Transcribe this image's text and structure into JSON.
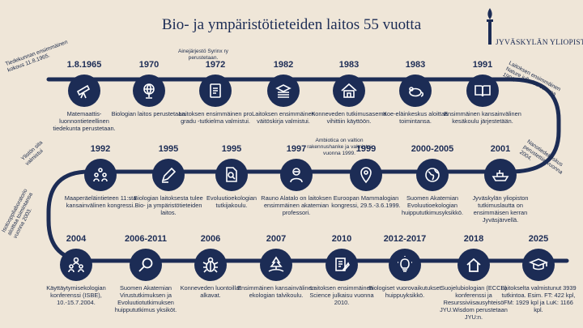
{
  "title": "Bio- ja ympäristötieteiden laitos 55 vuotta",
  "logo": {
    "name": "JYVÄSKYLÄN YLIOPISTO",
    "icon": "torch-icon"
  },
  "side_notes": {
    "n1": "Tiedekunnan ensimmäinen kokous 11.8.1965.",
    "n2": "Laitoksen ensimmäinen Nature julkaisu vuonna 1991.",
    "n3": "Ylistön sita valmistui",
    "n4": "Nanotiedekeskus perustettiin vuonna 2004.",
    "n5": "Isotooppilaboratorio aloittaa toimintansa vuonna 2003."
  },
  "small_notes": {
    "s1972": "Ainejärjestö Syrinx ry perustetaan.",
    "s1997": "Ambiotica on valtion rakennushanke ja valmistui vuonna 1999."
  },
  "events": [
    {
      "year": "1.8.1965",
      "icon": "telescope-icon",
      "text": "Matemaattis-luonnontieteellinen tiedekunta perustetaan."
    },
    {
      "year": "1970",
      "icon": "globe-icon",
      "text": "Biologian laitos perustetaan."
    },
    {
      "year": "1972",
      "icon": "notebook-icon",
      "text": "Laitoksen ensimmäinen pro gradu -tutkielma valmistui."
    },
    {
      "year": "1982",
      "icon": "books-icon",
      "text": "Laitoksen ensimmäinen väitöskirja valmistui."
    },
    {
      "year": "1983",
      "icon": "cabin-icon",
      "text": "Konneveden tutkimusasema vihittiin käyttöön."
    },
    {
      "year": "1983",
      "icon": "mouse-icon",
      "text": "Koe-eläinkeskus aloittaa toimintansa."
    },
    {
      "year": "1991",
      "icon": "open-book-icon",
      "text": "Ensimmäinen kansainvälinen kesäkoulu järjestetään."
    },
    {
      "year": "1992",
      "icon": "people-icon",
      "text": "Maaperäeläintieteen 11:sta kansainvälinen kongressi."
    },
    {
      "year": "1995",
      "icon": "pen-icon",
      "text": "Biologian laitoksesta tulee Bio- ja ympäristötieteiden laitos."
    },
    {
      "year": "1995",
      "icon": "document-search-icon",
      "text": "Evoluutioekologian tutkijakoulu."
    },
    {
      "year": "1997",
      "icon": "person-icon",
      "text": "Rauno Alatalo on laitoksen ensimmäinen akatemian professori."
    },
    {
      "year": "1999",
      "icon": "location-pin-icon",
      "text": "Euroopan Mammalogian kongressi, 29.5.-3.6.1999."
    },
    {
      "year": "2000-2005",
      "icon": "earth-icon",
      "text": "Suomen Akatemian Evoluutioekologian huippututkimusyksikkö."
    },
    {
      "year": "2001",
      "icon": "ship-icon",
      "text": "Jyväskylän yliopiston tutkimuslautta on ensimmäisen kerran Jyväsjärvellä."
    },
    {
      "year": "2004",
      "icon": "team-icon",
      "text": "Käyttäytymisekologian konferenssi (ISBE), 10.-15.7.2004."
    },
    {
      "year": "2006-2011",
      "icon": "magnifier-icon",
      "text": "Suomen Akatemian Virustutkimuksen ja Evoluutiotutkimuksen huippututkimus yksiköt."
    },
    {
      "year": "2006",
      "icon": "bug-icon",
      "text": "Konneveden luontoillat alkavat."
    },
    {
      "year": "2007",
      "icon": "tree-icon",
      "text": "Ensimmäinen kansainvälinen ekologian talvikoulu."
    },
    {
      "year": "2010",
      "icon": "document-pen-icon",
      "text": "Laitoksen ensimmäinen Science julkaisu vuonna 2010."
    },
    {
      "year": "2012-2017",
      "icon": "lightbulb-icon",
      "text": "Biologiset vuorovaikutukset huippuyksikkö."
    },
    {
      "year": "2018",
      "icon": "house-icon",
      "text": "Suojelubiologian (ECCB) konferenssi ja Resurssiviisausyhteisö JYU.Wisdom perustetaan JYU:n."
    },
    {
      "year": "2025",
      "icon": "graduation-cap-icon",
      "text": "Laitokselta valmistunut 3939 tutkintoa. Esim. FT: 422 kpl, FM: 1929 kpl ja LuK: 1166 kpl."
    }
  ]
}
